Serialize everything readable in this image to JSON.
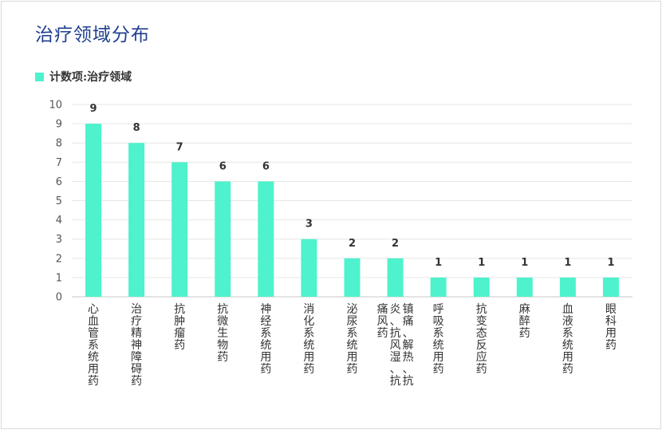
{
  "title": "治疗领域分布",
  "legend": {
    "label": "计数项:治疗领域",
    "color": "#4ef2cc"
  },
  "chart_data": {
    "type": "bar",
    "title": "治疗领域分布",
    "xlabel": "",
    "ylabel": "",
    "ylim": [
      0,
      10
    ],
    "yticks": [
      0,
      1,
      2,
      3,
      4,
      5,
      6,
      7,
      8,
      9,
      10
    ],
    "grid": true,
    "legend_position": "top-left",
    "categories": [
      "心血管系统用药",
      "治疗精神障碍药",
      "抗肿瘤药",
      "抗微生物药",
      "神经系统用药",
      "消化系统用药",
      "泌尿系统用药",
      "镇痛、解热、抗炎、抗风湿、抗痛风药",
      "呼吸系统用药",
      "抗变态反应药",
      "麻醉药",
      "血液系统用药",
      "眼科用药"
    ],
    "series": [
      {
        "name": "计数项:治疗领域",
        "color": "#4ef2cc",
        "values": [
          9,
          8,
          7,
          6,
          6,
          3,
          2,
          2,
          1,
          1,
          1,
          1,
          1
        ]
      }
    ]
  }
}
